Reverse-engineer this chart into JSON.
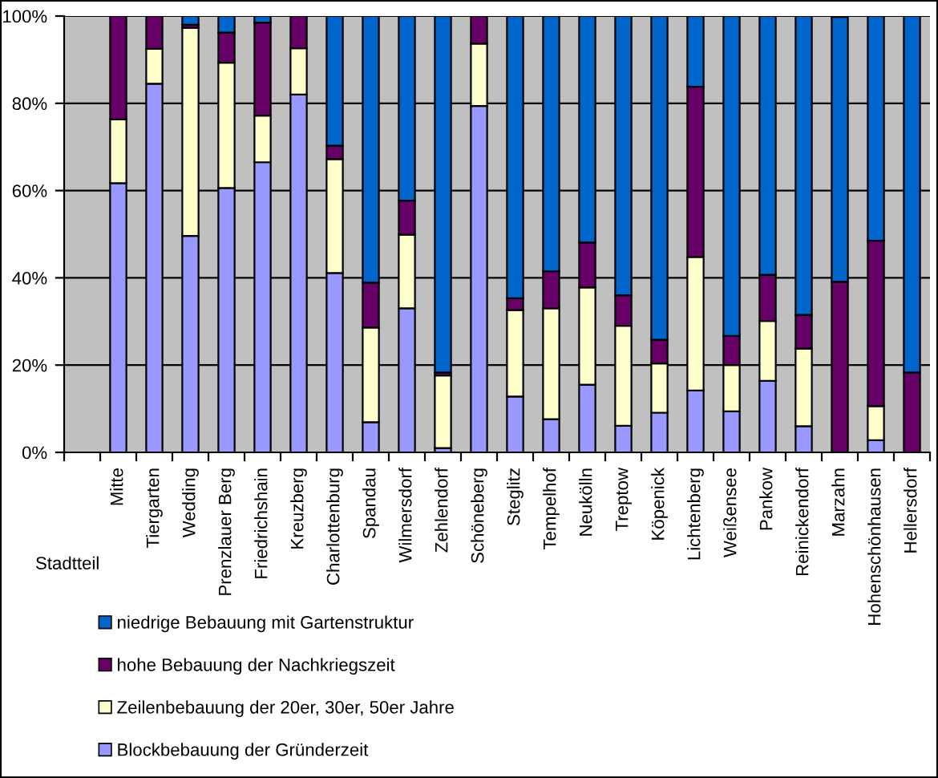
{
  "chart_data": {
    "type": "bar",
    "stacked": true,
    "xlabel": "Stadtteil",
    "categories": [
      null,
      "Mitte",
      "Tiergarten",
      "Wedding",
      "Prenzlauer Berg",
      "Friedrichshain",
      "Kreuzberg",
      "Charlottenburg",
      "Spandau",
      "Wilmersdorf",
      "Zehlendorf",
      "Schöneberg",
      "Steglitz",
      "Tempelhof",
      "Neukölln",
      "Treptow",
      "Köpenick",
      "Lichtenberg",
      "Weißensee",
      "Pankow",
      "Reinickendorf",
      "Marzahn",
      "Hohenschönhausen",
      "Hellersdorf"
    ],
    "series": [
      {
        "name": "Blockbebauung der Gründerzeit",
        "color": "#9999ff",
        "values": [
          null,
          61.7,
          84.5,
          49.6,
          60.6,
          66.5,
          82,
          41.1,
          6.9,
          33,
          1,
          79.4,
          12.8,
          7.6,
          15.5,
          6.1,
          9.1,
          14.2,
          9.4,
          16.4,
          6,
          0,
          2.8,
          0
        ]
      },
      {
        "name": "Zeilenbebauung der 20er, 30er, 50er Jahre",
        "color": "#ffffcc",
        "values": [
          null,
          14.6,
          8,
          47.7,
          28.7,
          10.7,
          10.6,
          26.1,
          21.7,
          16.9,
          16.6,
          14.3,
          19.8,
          25.4,
          22.3,
          22.9,
          11.3,
          30.6,
          10.6,
          13.7,
          17.8,
          0,
          7.8,
          0
        ]
      },
      {
        "name": "hohe Bebauung der Nachkriegszeit",
        "color": "#660066",
        "values": [
          null,
          23.7,
          7.5,
          0.7,
          6.9,
          21.3,
          7.4,
          3.1,
          10.3,
          7.8,
          0.7,
          6.3,
          2.7,
          8.5,
          10.3,
          7,
          5.4,
          39,
          6.7,
          10.6,
          7.7,
          39.1,
          37.9,
          18.3
        ]
      },
      {
        "name": "niedrige Bebauung mit Gartenstruktur",
        "color": "#0066cc",
        "values": [
          null,
          0,
          0,
          2,
          3.8,
          1.5,
          0,
          29.7,
          61.1,
          42.3,
          81.7,
          0,
          64.7,
          58.5,
          51.9,
          64,
          74.2,
          16.2,
          73.3,
          59.3,
          68.5,
          60.7,
          51.5,
          81.7
        ]
      }
    ],
    "ylim": [
      0,
      100
    ],
    "yticks": [
      {
        "value": 0,
        "label": "0%"
      },
      {
        "value": 20,
        "label": "20%"
      },
      {
        "value": 40,
        "label": "40%"
      },
      {
        "value": 60,
        "label": "60%"
      },
      {
        "value": 80,
        "label": "80%"
      },
      {
        "value": 100,
        "label": "100%"
      }
    ],
    "grid": "y",
    "legend": "bottom"
  }
}
